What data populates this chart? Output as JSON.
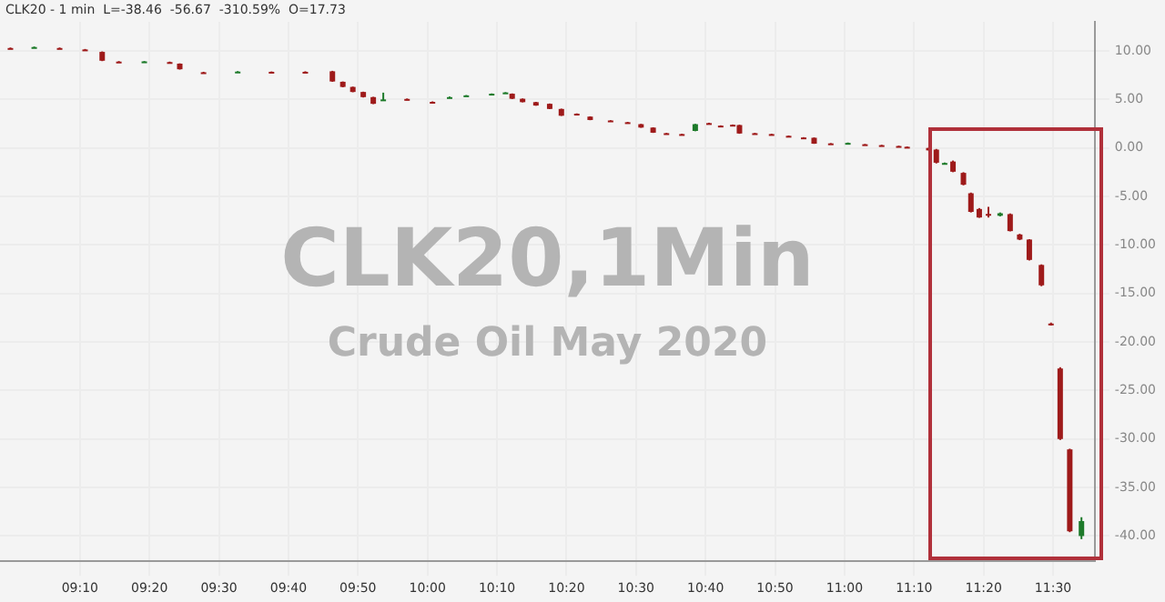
{
  "chart_data": {
    "type": "candlestick",
    "title": "CLK20 - 1 min  L=-38.46  -56.67  -310.59%  O=17.73",
    "annotations": [
      "CLK20,1Min",
      "Crude Oil May 2020"
    ],
    "x": [
      9.0,
      9.057,
      9.118,
      9.179,
      9.22,
      9.26,
      9.321,
      9.382,
      9.406,
      9.463,
      9.545,
      9.626,
      9.707,
      9.772,
      9.797,
      9.821,
      9.846,
      9.87,
      9.894,
      9.951,
      10.012,
      10.053,
      10.093,
      10.154,
      10.187,
      10.203,
      10.228,
      10.26,
      10.293,
      10.321,
      10.358,
      10.39,
      10.439,
      10.48,
      10.512,
      10.541,
      10.573,
      10.61,
      10.642,
      10.675,
      10.703,
      10.732,
      10.748,
      10.785,
      10.825,
      10.866,
      10.902,
      10.927,
      10.967,
      11.008,
      11.049,
      11.089,
      11.13,
      11.15,
      11.202,
      11.22,
      11.24,
      11.26,
      11.285,
      11.303,
      11.323,
      11.345,
      11.373,
      11.397,
      11.42,
      11.443,
      11.472,
      11.495,
      11.517,
      11.54,
      11.568
    ],
    "ohlc": [
      [
        10.3,
        10.35,
        10.2,
        10.25
      ],
      [
        10.35,
        10.45,
        10.3,
        10.4
      ],
      [
        10.3,
        10.35,
        10.2,
        10.25
      ],
      [
        10.15,
        10.2,
        10.05,
        10.1
      ],
      [
        9.9,
        9.95,
        8.95,
        8.99
      ],
      [
        8.9,
        8.95,
        8.8,
        8.85
      ],
      [
        8.9,
        8.95,
        8.85,
        8.92
      ],
      [
        8.85,
        8.9,
        8.75,
        8.8
      ],
      [
        8.69,
        8.72,
        8.08,
        8.11
      ],
      [
        7.8,
        7.85,
        7.7,
        7.77
      ],
      [
        7.85,
        7.92,
        7.82,
        7.87
      ],
      [
        7.85,
        7.88,
        7.75,
        7.8
      ],
      [
        7.85,
        7.9,
        7.78,
        7.82
      ],
      [
        7.9,
        7.95,
        6.82,
        6.85
      ],
      [
        6.82,
        6.85,
        6.25,
        6.29
      ],
      [
        6.29,
        6.32,
        5.74,
        5.77
      ],
      [
        5.77,
        5.8,
        5.2,
        5.24
      ],
      [
        5.24,
        5.27,
        4.52,
        4.55
      ],
      [
        4.95,
        5.7,
        4.9,
        5.0
      ],
      [
        5.05,
        5.1,
        4.9,
        4.95
      ],
      [
        4.75,
        4.8,
        4.68,
        4.72
      ],
      [
        5.15,
        5.3,
        5.1,
        5.24
      ],
      [
        5.38,
        5.45,
        5.35,
        5.42
      ],
      [
        5.55,
        5.62,
        5.52,
        5.59
      ],
      [
        5.62,
        5.75,
        5.6,
        5.72
      ],
      [
        5.59,
        5.62,
        5.04,
        5.07
      ],
      [
        5.07,
        5.1,
        4.7,
        4.72
      ],
      [
        4.72,
        4.75,
        4.35,
        4.37
      ],
      [
        4.55,
        4.58,
        4.0,
        4.02
      ],
      [
        4.02,
        4.05,
        3.3,
        3.32
      ],
      [
        3.53,
        3.56,
        3.45,
        3.5
      ],
      [
        3.23,
        3.26,
        2.86,
        2.88
      ],
      [
        2.83,
        2.86,
        2.76,
        2.8
      ],
      [
        2.65,
        2.68,
        2.58,
        2.62
      ],
      [
        2.45,
        2.48,
        2.08,
        2.1
      ],
      [
        2.1,
        2.13,
        1.55,
        1.57
      ],
      [
        1.52,
        1.55,
        1.45,
        1.49
      ],
      [
        1.43,
        1.46,
        1.36,
        1.4
      ],
      [
        1.75,
        2.48,
        1.72,
        2.45
      ],
      [
        2.56,
        2.6,
        2.5,
        2.53
      ],
      [
        2.3,
        2.33,
        2.24,
        2.27
      ],
      [
        2.39,
        2.42,
        2.33,
        2.36
      ],
      [
        2.36,
        2.39,
        1.46,
        1.49
      ],
      [
        1.52,
        1.55,
        1.45,
        1.49
      ],
      [
        1.43,
        1.46,
        1.36,
        1.4
      ],
      [
        1.25,
        1.28,
        1.18,
        1.22
      ],
      [
        1.08,
        1.11,
        1.02,
        1.05
      ],
      [
        1.05,
        1.08,
        0.42,
        0.44
      ],
      [
        0.47,
        0.5,
        0.4,
        0.44
      ],
      [
        0.48,
        0.56,
        0.45,
        0.52
      ],
      [
        0.38,
        0.41,
        0.32,
        0.35
      ],
      [
        0.29,
        0.32,
        0.22,
        0.26
      ],
      [
        0.2,
        0.23,
        0.14,
        0.17
      ],
      [
        0.12,
        0.15,
        0.05,
        0.09
      ],
      [
        0.0,
        0.03,
        -0.26,
        -0.25
      ],
      [
        -0.17,
        -0.1,
        -1.6,
        -1.52
      ],
      [
        -1.6,
        -1.5,
        -1.7,
        -1.55
      ],
      [
        -1.4,
        -1.3,
        -2.5,
        -2.45
      ],
      [
        -2.57,
        -2.5,
        -3.85,
        -3.79
      ],
      [
        -4.67,
        -4.6,
        -6.65,
        -6.59
      ],
      [
        -6.29,
        -6.2,
        -7.2,
        -7.17
      ],
      [
        -6.8,
        -6.07,
        -7.17,
        -6.82
      ],
      [
        -6.99,
        -6.65,
        -7.05,
        -6.73
      ],
      [
        -6.82,
        -6.75,
        -8.6,
        -8.57
      ],
      [
        -8.92,
        -8.85,
        -9.5,
        -9.44
      ],
      [
        -9.44,
        -9.4,
        -11.6,
        -11.54
      ],
      [
        -12.06,
        -12.0,
        -14.25,
        -14.16
      ],
      [
        -18.1,
        -18.0,
        -18.3,
        -18.2
      ],
      [
        -22.73,
        -22.6,
        -30.1,
        -30.0
      ],
      [
        -31.07,
        -31.0,
        -39.6,
        -39.51
      ],
      [
        -40.0,
        -38.06,
        -40.32,
        -38.46
      ]
    ],
    "xlim": [
      8.975,
      11.6
    ],
    "xticks": [
      {
        "value": 9.1667,
        "label": "09:10"
      },
      {
        "value": 9.3333,
        "label": "09:20"
      },
      {
        "value": 9.5,
        "label": "09:30"
      },
      {
        "value": 9.6667,
        "label": "09:40"
      },
      {
        "value": 9.8333,
        "label": "09:50"
      },
      {
        "value": 10,
        "label": "10:00"
      },
      {
        "value": 10.1667,
        "label": "10:10"
      },
      {
        "value": 10.3333,
        "label": "10:20"
      },
      {
        "value": 10.5,
        "label": "10:30"
      },
      {
        "value": 10.6667,
        "label": "10:40"
      },
      {
        "value": 10.8333,
        "label": "10:50"
      },
      {
        "value": 11,
        "label": "11:00"
      },
      {
        "value": 11.1667,
        "label": "11:10"
      },
      {
        "value": 11.3333,
        "label": "11:20"
      },
      {
        "value": 11.5,
        "label": "11:30"
      }
    ],
    "ylim": [
      -42.6,
      13
    ],
    "yticks": [
      {
        "value": 10,
        "label": "10.00"
      },
      {
        "value": 5,
        "label": "5.00"
      },
      {
        "value": 0,
        "label": "0.00"
      },
      {
        "value": -5,
        "label": "-5.00"
      },
      {
        "value": -10,
        "label": "-10.00"
      },
      {
        "value": -15,
        "label": "-15.00"
      },
      {
        "value": -20,
        "label": "-20.00"
      },
      {
        "value": -25,
        "label": "-25.00"
      },
      {
        "value": -30,
        "label": "-30.00"
      },
      {
        "value": -35,
        "label": "-35.00"
      },
      {
        "value": -40,
        "label": "-40.00"
      }
    ],
    "grid": true
  }
}
